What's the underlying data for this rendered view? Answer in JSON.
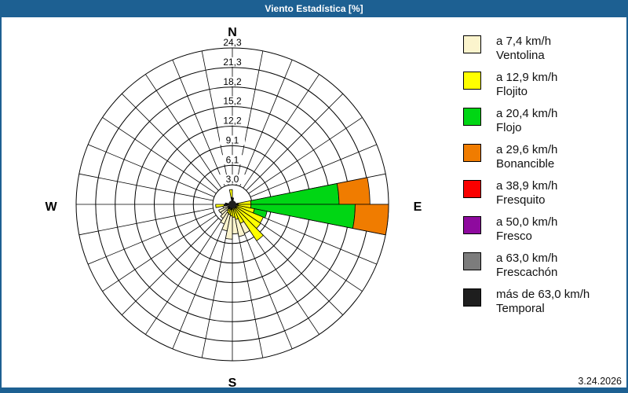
{
  "window": {
    "title": "Viento Estadística [%]",
    "status_date": "3.24.2026"
  },
  "colors": {
    "titlebar": "#1d6092",
    "frame": "#1d6092",
    "grid": "#000000",
    "background": "#ffffff"
  },
  "compass": {
    "north": "N",
    "east": "E",
    "south": "S",
    "west": "W"
  },
  "chart_data": {
    "type": "windrose",
    "title": "Viento Estadística [%]",
    "units": "%",
    "sector_count": 32,
    "sector_width_deg": 11.25,
    "rmax": 24.3,
    "ring_values": [
      3.0,
      6.1,
      9.1,
      12.2,
      15.2,
      18.2,
      21.3,
      24.3
    ],
    "ring_tick_labels": [
      "3,0",
      "6,1",
      "9,1",
      "12,2",
      "15,2",
      "18,2",
      "21,3",
      "24,3"
    ],
    "speed_classes": [
      {
        "id": "ventolina",
        "speed_label": "a 7,4 km/h",
        "name": "Ventolina",
        "color": "#fbf4cd"
      },
      {
        "id": "flojito",
        "speed_label": "a 12,9 km/h",
        "name": "Flojito",
        "color": "#ffff00"
      },
      {
        "id": "flojo",
        "speed_label": "a 20,4 km/h",
        "name": "Flojo",
        "color": "#00d614"
      },
      {
        "id": "bonancible",
        "speed_label": "a 29,6 km/h",
        "name": "Bonancible",
        "color": "#f07c00"
      },
      {
        "id": "fresquito",
        "speed_label": "a 38,9 km/h",
        "name": "Fresquito",
        "color": "#fa0000"
      },
      {
        "id": "fresco",
        "speed_label": "a 50,0 km/h",
        "name": "Fresco",
        "color": "#8e0a9e"
      },
      {
        "id": "frescachon",
        "speed_label": "a 63,0 km/h",
        "name": "Frescachón",
        "color": "#7c7c7c"
      },
      {
        "id": "temporal",
        "speed_label": "más de 63,0 km/h",
        "name": "Temporal",
        "color": "#1e1e1e"
      }
    ],
    "petals": [
      {
        "dir_start_deg": 78.75,
        "segments": [
          {
            "class": "flojito",
            "value": 2.9
          },
          {
            "class": "flojo",
            "value": 13.7
          },
          {
            "class": "bonancible",
            "value": 4.8
          }
        ]
      },
      {
        "dir_start_deg": 90.0,
        "segments": [
          {
            "class": "flojito",
            "value": 2.9
          },
          {
            "class": "flojo",
            "value": 16.2
          },
          {
            "class": "bonancible",
            "value": 5.2
          }
        ]
      },
      {
        "dir_start_deg": 101.25,
        "segments": [
          {
            "class": "flojito",
            "value": 3.5
          },
          {
            "class": "flojo",
            "value": 2.0
          }
        ]
      },
      {
        "dir_start_deg": 112.5,
        "segments": [
          {
            "class": "flojito",
            "value": 5.2
          }
        ]
      },
      {
        "dir_start_deg": 123.75,
        "segments": [
          {
            "class": "flojito",
            "value": 5.3
          }
        ]
      },
      {
        "dir_start_deg": 135.0,
        "segments": [
          {
            "class": "flojito",
            "value": 6.8
          }
        ]
      },
      {
        "dir_start_deg": 146.25,
        "segments": [
          {
            "class": "flojito",
            "value": 3.2
          },
          {
            "class": "ventolina",
            "value": 1.7
          }
        ]
      },
      {
        "dir_start_deg": 157.5,
        "segments": [
          {
            "class": "flojito",
            "value": 2.4
          },
          {
            "class": "ventolina",
            "value": 2.7
          }
        ]
      },
      {
        "dir_start_deg": 168.75,
        "segments": [
          {
            "class": "flojito",
            "value": 2.0
          },
          {
            "class": "ventolina",
            "value": 2.6
          }
        ]
      },
      {
        "dir_start_deg": 180.0,
        "segments": [
          {
            "class": "flojito",
            "value": 1.8
          },
          {
            "class": "ventolina",
            "value": 3.6
          }
        ]
      },
      {
        "dir_start_deg": 191.25,
        "segments": [
          {
            "class": "flojito",
            "value": 1.6
          },
          {
            "class": "ventolina",
            "value": 2.6
          }
        ]
      },
      {
        "dir_start_deg": 202.5,
        "segments": [
          {
            "class": "flojito",
            "value": 1.5
          },
          {
            "class": "ventolina",
            "value": 1.8
          }
        ]
      },
      {
        "dir_start_deg": 213.75,
        "segments": [
          {
            "class": "flojito",
            "value": 1.2
          },
          {
            "class": "ventolina",
            "value": 1.4
          }
        ]
      },
      {
        "dir_start_deg": 225.0,
        "segments": [
          {
            "class": "ventolina",
            "value": 2.2
          }
        ]
      },
      {
        "dir_start_deg": 236.25,
        "segments": [
          {
            "class": "ventolina",
            "value": 2.3
          }
        ]
      },
      {
        "dir_start_deg": 247.5,
        "segments": [
          {
            "class": "ventolina",
            "value": 1.5
          }
        ]
      },
      {
        "dir_start_deg": 258.75,
        "segments": [
          {
            "class": "flojito",
            "value": 2.6
          }
        ]
      },
      {
        "dir_start_deg": 348.75,
        "segments": [
          {
            "class": "temporal",
            "value": 1.1
          },
          {
            "class": "flojito",
            "value": 1.2
          }
        ]
      },
      {
        "dir_start_deg": 0.0,
        "segments": [
          {
            "class": "temporal",
            "value": 1.0
          }
        ]
      },
      {
        "dir_start_deg": 258.75,
        "segments": [
          {
            "class": "temporal",
            "value": 1.3
          }
        ]
      },
      {
        "dir_start_deg": 270.0,
        "segments": [
          {
            "class": "temporal",
            "value": 1.1
          }
        ]
      },
      {
        "dir_start_deg": 213.75,
        "segments": [
          {
            "class": "temporal",
            "value": 0.9
          }
        ]
      },
      {
        "dir_start_deg": 225.0,
        "segments": [
          {
            "class": "temporal",
            "value": 0.8
          }
        ]
      },
      {
        "dir_start_deg": 180.0,
        "segments": [
          {
            "class": "temporal",
            "value": 0.8
          }
        ]
      },
      {
        "dir_start_deg": 191.25,
        "segments": [
          {
            "class": "temporal",
            "value": 0.8
          }
        ]
      },
      {
        "dir_start_deg": 123.75,
        "segments": [
          {
            "class": "temporal",
            "value": 0.8
          }
        ]
      },
      {
        "dir_start_deg": 78.75,
        "segments": [
          {
            "class": "temporal",
            "value": 0.9
          }
        ]
      },
      {
        "dir_start_deg": 90.0,
        "segments": [
          {
            "class": "temporal",
            "value": 0.9
          }
        ]
      }
    ],
    "legend_position": "right",
    "grid": true
  }
}
